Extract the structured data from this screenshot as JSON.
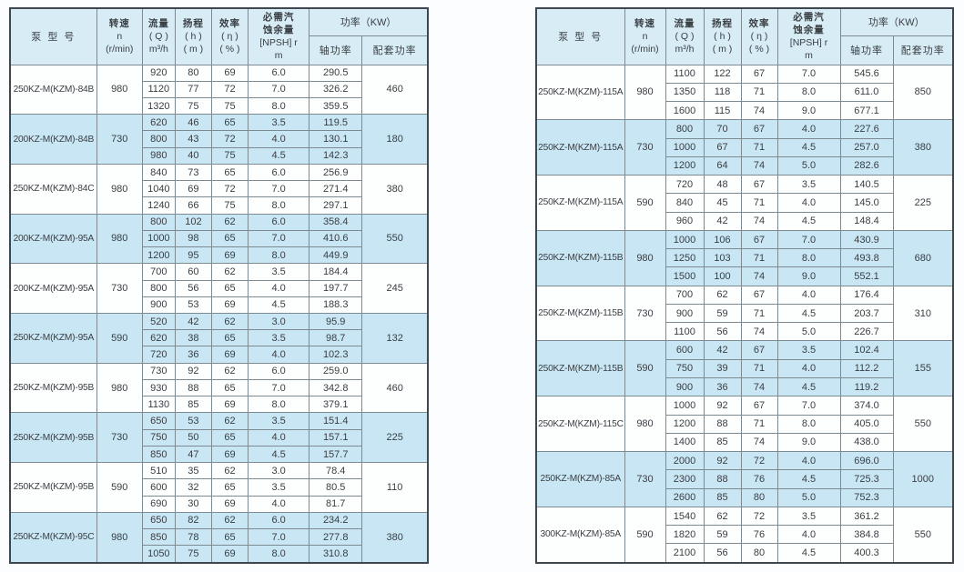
{
  "colors": {
    "page_bg": "#fbfdfe",
    "header_bg": "#d7ecf5",
    "row_highlight": "#c9e6f4",
    "row_plain": "#fdfefe",
    "grid_border": "#7e8a92",
    "outer_border": "#3e474f",
    "text": "#393e43"
  },
  "header": {
    "model": "泵  型  号",
    "speed": [
      "转速",
      "n",
      "(r/min)"
    ],
    "flow": [
      "流量",
      "( Q )",
      "m³/h"
    ],
    "head": [
      "扬程",
      "( h )",
      "( m )"
    ],
    "eff": [
      "效率",
      "( η )",
      "( % )"
    ],
    "npsh": [
      "必需汽",
      "蚀余量",
      "[NPSH] r",
      "m"
    ],
    "power": "功率（KW）",
    "shaft": "轴功率",
    "match": "配套功率"
  },
  "tables": [
    {
      "side": "left",
      "groups": [
        {
          "model": "250KZ-M(KZM)-84B",
          "speed": "980",
          "highlight": false,
          "match": "460",
          "rows": [
            [
              "920",
              "80",
              "69",
              "6.0",
              "290.5"
            ],
            [
              "1120",
              "77",
              "72",
              "7.0",
              "326.2"
            ],
            [
              "1320",
              "75",
              "75",
              "8.0",
              "359.5"
            ]
          ]
        },
        {
          "model": "200KZ-M(KZM)-84B",
          "speed": "730",
          "highlight": true,
          "match": "180",
          "rows": [
            [
              "620",
              "46",
              "65",
              "3.5",
              "119.5"
            ],
            [
              "800",
              "43",
              "72",
              "4.0",
              "130.1"
            ],
            [
              "980",
              "40",
              "75",
              "4.5",
              "142.3"
            ]
          ]
        },
        {
          "model": "250KZ-M(KZM)-84C",
          "speed": "980",
          "highlight": false,
          "match": "380",
          "rows": [
            [
              "840",
              "73",
              "65",
              "6.0",
              "256.9"
            ],
            [
              "1040",
              "69",
              "72",
              "7.0",
              "271.4"
            ],
            [
              "1240",
              "66",
              "75",
              "8.0",
              "297.1"
            ]
          ]
        },
        {
          "model": "200KZ-M(KZM)-95A",
          "speed": "980",
          "highlight": true,
          "match": "550",
          "rows": [
            [
              "800",
              "102",
              "62",
              "6.0",
              "358.4"
            ],
            [
              "1000",
              "98",
              "65",
              "7.0",
              "410.6"
            ],
            [
              "1200",
              "95",
              "69",
              "8.0",
              "449.9"
            ]
          ]
        },
        {
          "model": "200KZ-M(KZM)-95A",
          "speed": "730",
          "highlight": false,
          "match": "245",
          "rows": [
            [
              "700",
              "60",
              "62",
              "3.5",
              "184.4"
            ],
            [
              "800",
              "56",
              "65",
              "4.0",
              "197.7"
            ],
            [
              "900",
              "53",
              "69",
              "4.5",
              "188.3"
            ]
          ]
        },
        {
          "model": "250KZ-M(KZM)-95A",
          "speed": "590",
          "highlight": true,
          "match": "132",
          "rows": [
            [
              "520",
              "42",
              "62",
              "3.0",
              "95.9"
            ],
            [
              "620",
              "38",
              "65",
              "3.5",
              "98.7"
            ],
            [
              "720",
              "36",
              "69",
              "4.0",
              "102.3"
            ]
          ]
        },
        {
          "model": "250KZ-M(KZM)-95B",
          "speed": "980",
          "highlight": false,
          "match": "460",
          "rows": [
            [
              "730",
              "92",
              "62",
              "6.0",
              "259.0"
            ],
            [
              "930",
              "88",
              "65",
              "7.0",
              "342.8"
            ],
            [
              "1130",
              "85",
              "69",
              "8.0",
              "379.1"
            ]
          ]
        },
        {
          "model": "250KZ-M(KZM)-95B",
          "speed": "730",
          "highlight": true,
          "match": "225",
          "rows": [
            [
              "650",
              "53",
              "62",
              "3.5",
              "151.4"
            ],
            [
              "750",
              "50",
              "65",
              "4.0",
              "157.1"
            ],
            [
              "850",
              "47",
              "69",
              "4.5",
              "157.7"
            ]
          ]
        },
        {
          "model": "250KZ-M(KZM)-95B",
          "speed": "590",
          "highlight": false,
          "match": "110",
          "rows": [
            [
              "510",
              "35",
              "62",
              "3.0",
              "78.4"
            ],
            [
              "600",
              "32",
              "65",
              "3.5",
              "80.5"
            ],
            [
              "690",
              "30",
              "69",
              "4.0",
              "81.7"
            ]
          ]
        },
        {
          "model": "250KZ-M(KZM)-95C",
          "speed": "980",
          "highlight": true,
          "match": "380",
          "rows": [
            [
              "650",
              "82",
              "62",
              "6.0",
              "234.2"
            ],
            [
              "850",
              "78",
              "65",
              "7.0",
              "277.8"
            ],
            [
              "1050",
              "75",
              "69",
              "8.0",
              "310.8"
            ]
          ]
        }
      ]
    },
    {
      "side": "right",
      "groups": [
        {
          "model": "250KZ-M(KZM)-115A",
          "speed": "980",
          "highlight": false,
          "match": "850",
          "rows": [
            [
              "1100",
              "122",
              "67",
              "7.0",
              "545.6"
            ],
            [
              "1350",
              "118",
              "71",
              "8.0",
              "611.0"
            ],
            [
              "1600",
              "115",
              "74",
              "9.0",
              "677.1"
            ]
          ]
        },
        {
          "model": "250KZ-M(KZM)-115A",
          "speed": "730",
          "highlight": true,
          "match": "380",
          "rows": [
            [
              "800",
              "70",
              "67",
              "4.0",
              "227.6"
            ],
            [
              "1000",
              "67",
              "71",
              "4.5",
              "257.0"
            ],
            [
              "1200",
              "64",
              "74",
              "5.0",
              "282.6"
            ]
          ]
        },
        {
          "model": "250KZ-M(KZM)-115A",
          "speed": "590",
          "highlight": false,
          "match": "225",
          "rows": [
            [
              "720",
              "48",
              "67",
              "3.5",
              "140.5"
            ],
            [
              "840",
              "45",
              "71",
              "4.0",
              "145.0"
            ],
            [
              "960",
              "42",
              "74",
              "4.5",
              "148.4"
            ]
          ]
        },
        {
          "model": "250KZ-M(KZM)-115B",
          "speed": "980",
          "highlight": true,
          "match": "680",
          "rows": [
            [
              "1000",
              "106",
              "67",
              "7.0",
              "430.9"
            ],
            [
              "1250",
              "103",
              "71",
              "8.0",
              "493.8"
            ],
            [
              "1500",
              "100",
              "74",
              "9.0",
              "552.1"
            ]
          ]
        },
        {
          "model": "250KZ-M(KZM)-115B",
          "speed": "730",
          "highlight": false,
          "match": "310",
          "rows": [
            [
              "700",
              "62",
              "67",
              "4.0",
              "176.4"
            ],
            [
              "900",
              "59",
              "71",
              "4.5",
              "203.7"
            ],
            [
              "1100",
              "56",
              "74",
              "5.0",
              "226.7"
            ]
          ]
        },
        {
          "model": "250KZ-M(KZM)-115B",
          "speed": "590",
          "highlight": true,
          "match": "155",
          "rows": [
            [
              "600",
              "42",
              "67",
              "3.5",
              "102.4"
            ],
            [
              "750",
              "39",
              "71",
              "4.0",
              "112.2"
            ],
            [
              "900",
              "36",
              "74",
              "4.5",
              "119.2"
            ]
          ]
        },
        {
          "model": "250KZ-M(KZM)-115C",
          "speed": "980",
          "highlight": false,
          "match": "550",
          "rows": [
            [
              "1000",
              "92",
              "67",
              "7.0",
              "374.0"
            ],
            [
              "1200",
              "88",
              "71",
              "8.0",
              "405.0"
            ],
            [
              "1400",
              "85",
              "74",
              "9.0",
              "438.0"
            ]
          ]
        },
        {
          "model": "250KZ-M(KZM)-85A",
          "speed": "730",
          "highlight": true,
          "match": "1000",
          "rows": [
            [
              "2000",
              "92",
              "72",
              "4.0",
              "696.0"
            ],
            [
              "2300",
              "88",
              "76",
              "4.5",
              "725.3"
            ],
            [
              "2600",
              "85",
              "80",
              "5.0",
              "752.3"
            ]
          ]
        },
        {
          "model": "300KZ-M(KZM)-85A",
          "speed": "590",
          "highlight": false,
          "match": "550",
          "rows": [
            [
              "1540",
              "62",
              "72",
              "3.5",
              "361.2"
            ],
            [
              "1820",
              "59",
              "76",
              "4.0",
              "384.8"
            ],
            [
              "2100",
              "56",
              "80",
              "4.5",
              "400.3"
            ]
          ]
        }
      ]
    }
  ]
}
